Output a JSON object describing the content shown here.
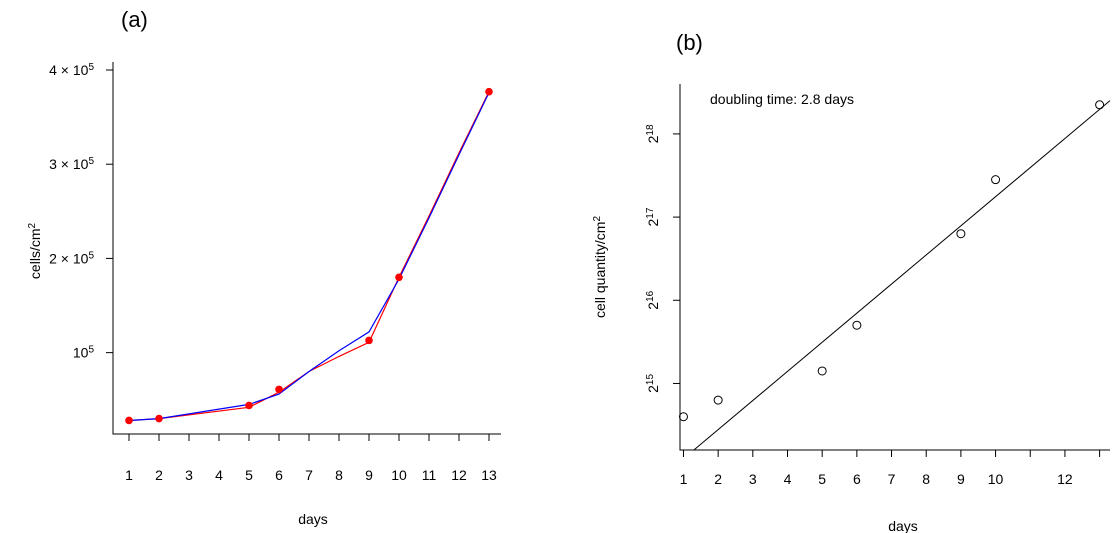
{
  "chart_data": [
    {
      "panel_label": "(a)",
      "type": "line",
      "xlabel": "days",
      "ylabel": "cells/cm",
      "ylabel_sup": "2",
      "x_ticks": [
        1,
        2,
        3,
        4,
        5,
        6,
        7,
        8,
        9,
        10,
        11,
        12,
        13
      ],
      "y_ticks": [
        {
          "value": 100000,
          "label": "10",
          "exp": "5"
        },
        {
          "value": 200000,
          "label": "2 × 10",
          "exp": "5"
        },
        {
          "value": 300000,
          "label": "3 × 10",
          "exp": "5"
        },
        {
          "value": 400000,
          "label": "4 × 10",
          "exp": "5"
        }
      ],
      "xlim": [
        1,
        13
      ],
      "ylim": [
        20000,
        400000
      ],
      "series": [
        {
          "color": "#ff0000",
          "kind": "points",
          "x": [
            1,
            2,
            5,
            6,
            9,
            10,
            13
          ],
          "y": [
            28000,
            30000,
            44000,
            61000,
            113000,
            180000,
            377000
          ]
        },
        {
          "color": "#ff0000",
          "kind": "line",
          "x": [
            1,
            2,
            5,
            6,
            7,
            8,
            9,
            10,
            11,
            12,
            13
          ],
          "y": [
            28000,
            30000,
            42000,
            58000,
            80000,
            96000,
            111000,
            180000,
            245000,
            312000,
            377000
          ]
        },
        {
          "color": "#0000ff",
          "kind": "line",
          "x": [
            1,
            2,
            5,
            6,
            7,
            8,
            9,
            10,
            11,
            12,
            13
          ],
          "y": [
            28000,
            30000,
            45000,
            56000,
            80000,
            102000,
            122000,
            178000,
            243000,
            310000,
            376000
          ]
        }
      ]
    },
    {
      "panel_label": "(b)",
      "type": "scatter",
      "xlabel": "days",
      "ylabel": "cell quantity/cm",
      "ylabel_sup": "2",
      "annotation": "doubling time: 2.8 days",
      "scale": "log2",
      "x_ticks": [
        1,
        2,
        3,
        4,
        5,
        6,
        7,
        8,
        9,
        10,
        11,
        12,
        13
      ],
      "x_tick_labels": [
        "1",
        "2",
        "3",
        "4",
        "5",
        "6",
        "7",
        "8",
        "9",
        "10",
        "",
        "12",
        ""
      ],
      "y_ticks": [
        {
          "value": 15,
          "label": "2",
          "exp": "15"
        },
        {
          "value": 16,
          "label": "2",
          "exp": "16"
        },
        {
          "value": 17,
          "label": "2",
          "exp": "17"
        },
        {
          "value": 18,
          "label": "2",
          "exp": "18"
        }
      ],
      "xlim": [
        0.9,
        13.3
      ],
      "ylim_log2": [
        14.2,
        18.6
      ],
      "points_log2": {
        "x": [
          1,
          2,
          5,
          6,
          9,
          10,
          13
        ],
        "y": [
          14.6,
          14.8,
          15.15,
          15.7,
          16.8,
          17.45,
          18.35
        ]
      },
      "fit_log2": {
        "x": [
          1.3,
          13.3
        ],
        "y": [
          14.2,
          18.4
        ]
      }
    }
  ]
}
